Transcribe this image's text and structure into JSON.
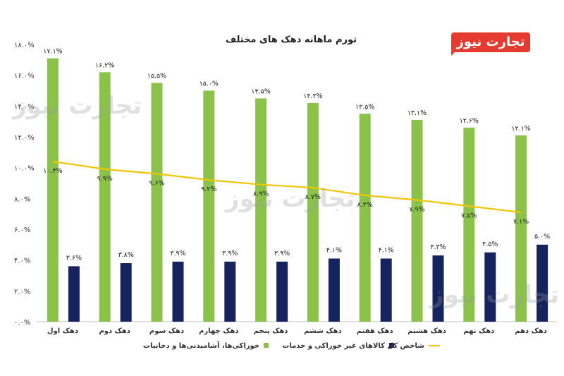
{
  "logo_text": "تجارت نیوز",
  "watermark_text": "تجارت نیوز",
  "colors": {
    "food": "#8bc34a",
    "nonfood": "#15245e",
    "total": "#f2c500",
    "axis_text": "#333333"
  },
  "chart_data": {
    "type": "bar",
    "title": "تورم ماهانه دهک های مختلف",
    "xlabel": "",
    "ylabel": "",
    "ylim": [
      0,
      18
    ],
    "ytick_values": [
      0,
      2,
      4,
      6,
      8,
      10,
      12,
      14,
      16,
      18
    ],
    "ytick_labels": [
      "۰.۰%",
      "۲.۰%",
      "۴.۰%",
      "۶.۰%",
      "۸.۰%",
      "۱۰.۰%",
      "۱۲.۰%",
      "۱۴.۰%",
      "۱۶.۰%",
      "۱۸.۰%"
    ],
    "categories": [
      "دهک اول",
      "دهک دوم",
      "دهک سوم",
      "دهک چهارم",
      "دهک پنجم",
      "دهک ششم",
      "دهک هفتم",
      "دهک هشتم",
      "دهک نهم",
      "دهک دهم"
    ],
    "grid": false,
    "legend_position": "bottom",
    "series": [
      {
        "name": "خوراکی‌ها، آشامیدنی‌ها و دخانیات",
        "kind": "bar",
        "values": [
          17.1,
          16.2,
          15.5,
          15.0,
          14.5,
          14.2,
          13.5,
          13.1,
          12.6,
          12.1
        ],
        "labels": [
          "۱۷.۱%",
          "۱۶.۲%",
          "۱۵.۵%",
          "۱۵.۰%",
          "۱۴.۵%",
          "۱۴.۲%",
          "۱۳.۵%",
          "۱۳.۱%",
          "۱۲.۶%",
          "۱۲.۱%"
        ]
      },
      {
        "name": "کالاهای غیر خوراکی و خدمات",
        "kind": "bar",
        "values": [
          3.6,
          3.8,
          3.9,
          3.9,
          3.9,
          4.1,
          4.1,
          4.3,
          4.5,
          5.0
        ],
        "labels": [
          "۳.۶%",
          "۳.۸%",
          "۳.۹%",
          "۳.۹%",
          "۳.۹%",
          "۴.۱%",
          "۴.۱%",
          "۴.۳%",
          "۴.۵%",
          "۵.۰%"
        ]
      },
      {
        "name": "شاخص کل",
        "kind": "line",
        "values": [
          10.4,
          9.9,
          9.6,
          9.2,
          8.9,
          8.7,
          8.2,
          7.9,
          7.5,
          7.1
        ],
        "labels": [
          "۱۰.۴%",
          "۹.۹%",
          "۹.۶%",
          "۹.۲%",
          "۸.۹%",
          "۸.۷%",
          "۸.۲%",
          "۷.۹%",
          "۷.۵%",
          "۷.۱%"
        ]
      }
    ]
  }
}
